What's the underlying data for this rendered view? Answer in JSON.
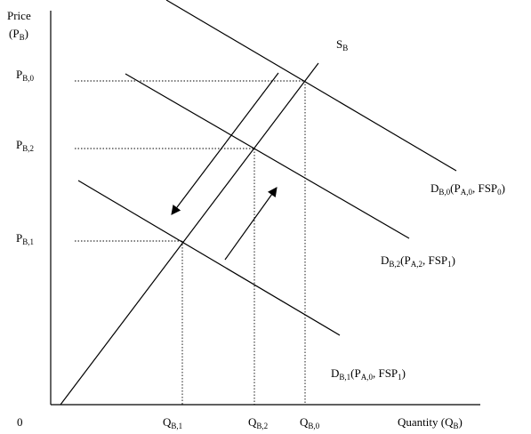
{
  "axes": {
    "y_title": "Price",
    "y_sub_prefix": "(P",
    "y_sub": "B",
    "y_sub_suffix": ")",
    "origin": "0",
    "x_title": "Quantity (Q",
    "x_sub": "B",
    "x_suffix": ")"
  },
  "price_labels": [
    {
      "main": "P",
      "sub": "B,0"
    },
    {
      "main": "P",
      "sub": "B,2"
    },
    {
      "main": "P",
      "sub": "B,1"
    }
  ],
  "quantity_labels": [
    {
      "main": "Q",
      "sub": "B,1"
    },
    {
      "main": "Q",
      "sub": "B,2"
    },
    {
      "main": "Q",
      "sub": "B,0"
    }
  ],
  "supply_label": {
    "main": "S",
    "sub": "B"
  },
  "demand_labels": [
    {
      "d": "D",
      "dsub": "B,0",
      "p": "(P",
      "psub": "A,0",
      "f": ", FSP",
      "fsub": "0",
      "end": ")"
    },
    {
      "d": "D",
      "dsub": "B,2",
      "p": "(P",
      "psub": "A,2",
      "f": ", FSP",
      "fsub": "1",
      "end": ")"
    },
    {
      "d": "D",
      "dsub": "B,1",
      "p": "(P",
      "psub": "A,0",
      "f": ", FSP",
      "fsub": "1",
      "end": ")"
    }
  ]
}
